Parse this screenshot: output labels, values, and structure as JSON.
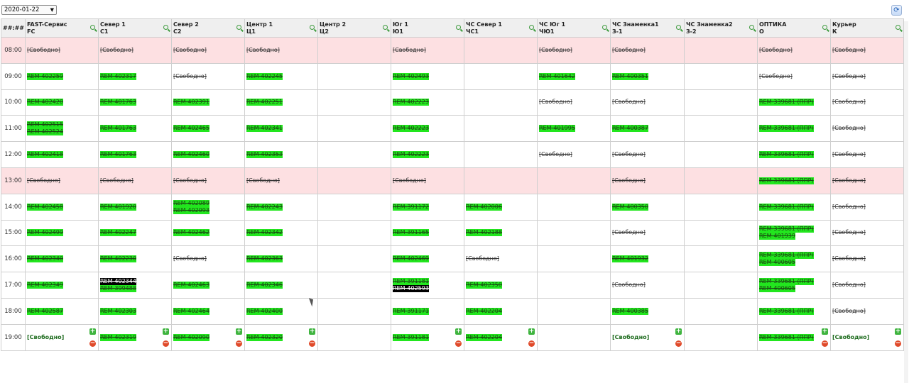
{
  "toolbar": {
    "date_value": "2020-01-22",
    "date_arrow": "▼",
    "refresh_icon": "refresh-icon"
  },
  "table": {
    "time_header": "##:##",
    "columns": [
      {
        "name": "FAST-Сервис",
        "code": "FC"
      },
      {
        "name": "Север 1",
        "code": "С1"
      },
      {
        "name": "Север 2",
        "code": "С2"
      },
      {
        "name": "Центр 1",
        "code": "Ц1"
      },
      {
        "name": "Центр 2",
        "code": "Ц2"
      },
      {
        "name": "Юг 1",
        "code": "Ю1"
      },
      {
        "name": "ЧС Север 1",
        "code": "ЧС1"
      },
      {
        "name": "ЧС Юг 1",
        "code": "ЧЮ1"
      },
      {
        "name": "ЧС Знаменка1",
        "code": "З-1"
      },
      {
        "name": "ЧС Знаменка2",
        "code": "З-2"
      },
      {
        "name": "ОПТИКА",
        "code": "О"
      },
      {
        "name": "Курьер",
        "code": "К"
      }
    ],
    "rows": [
      {
        "time": "08:00",
        "lunch": true,
        "cells": [
          [
            {
              "t": "[Свободно]",
              "s": "free"
            }
          ],
          [
            {
              "t": "[Свободно]",
              "s": "free"
            }
          ],
          [
            {
              "t": "[Свободно]",
              "s": "free"
            }
          ],
          [
            {
              "t": "[Свободно]",
              "s": "free"
            }
          ],
          [],
          [
            {
              "t": "[Свободно]",
              "s": "free"
            }
          ],
          [],
          [
            {
              "t": "[Свободно]",
              "s": "free"
            }
          ],
          [
            {
              "t": "[Свободно]",
              "s": "free"
            }
          ],
          [],
          [
            {
              "t": "[Свободно]",
              "s": "free"
            }
          ],
          [
            {
              "t": "[Свободно]",
              "s": "free"
            }
          ]
        ]
      },
      {
        "time": "09:00",
        "cells": [
          [
            {
              "t": "REM-402259",
              "s": "taken"
            }
          ],
          [
            {
              "t": "REM-402317",
              "s": "taken"
            }
          ],
          [
            {
              "t": "[Свободно]",
              "s": "free"
            }
          ],
          [
            {
              "t": "REM-402245",
              "s": "taken"
            }
          ],
          [],
          [
            {
              "t": "REM-402493",
              "s": "taken"
            }
          ],
          [],
          [
            {
              "t": "REM-401642",
              "s": "taken"
            }
          ],
          [
            {
              "t": "REM-400351",
              "s": "taken"
            }
          ],
          [],
          [
            {
              "t": "[Свободно]",
              "s": "free"
            }
          ],
          [
            {
              "t": "[Свободно]",
              "s": "free"
            }
          ]
        ]
      },
      {
        "time": "10:00",
        "cells": [
          [
            {
              "t": "REM-402420",
              "s": "taken"
            }
          ],
          [
            {
              "t": "REM-401763",
              "s": "taken"
            }
          ],
          [
            {
              "t": "REM-402391",
              "s": "taken"
            }
          ],
          [
            {
              "t": "REM-402251",
              "s": "taken"
            }
          ],
          [],
          [
            {
              "t": "REM-402223",
              "s": "taken"
            }
          ],
          [],
          [
            {
              "t": "[Свободно]",
              "s": "free"
            }
          ],
          [
            {
              "t": "[Свободно]",
              "s": "free"
            }
          ],
          [],
          [
            {
              "t": "REM-339681 (ППР)",
              "s": "taken"
            }
          ],
          [
            {
              "t": "[Свободно]",
              "s": "free"
            }
          ]
        ]
      },
      {
        "time": "11:00",
        "cells": [
          [
            {
              "t": "REM-402515",
              "s": "taken"
            },
            {
              "t": "REM-402524",
              "s": "taken"
            }
          ],
          [
            {
              "t": "REM-401763",
              "s": "taken"
            }
          ],
          [
            {
              "t": "REM-402465",
              "s": "taken"
            }
          ],
          [
            {
              "t": "REM-402341",
              "s": "taken"
            }
          ],
          [],
          [
            {
              "t": "REM-402223",
              "s": "taken"
            }
          ],
          [],
          [
            {
              "t": "REM-401995",
              "s": "taken"
            }
          ],
          [
            {
              "t": "REM-400387",
              "s": "taken"
            }
          ],
          [],
          [
            {
              "t": "REM-339681 (ППР)",
              "s": "taken"
            }
          ],
          [
            {
              "t": "[Свободно]",
              "s": "free"
            }
          ]
        ]
      },
      {
        "time": "12:00",
        "cells": [
          [
            {
              "t": "REM-402418",
              "s": "taken"
            }
          ],
          [
            {
              "t": "REM-401763",
              "s": "taken"
            }
          ],
          [
            {
              "t": "REM-402460",
              "s": "taken"
            }
          ],
          [
            {
              "t": "REM-402353",
              "s": "taken"
            }
          ],
          [],
          [
            {
              "t": "REM-402223",
              "s": "taken"
            }
          ],
          [],
          [
            {
              "t": "[Свободно]",
              "s": "free"
            }
          ],
          [
            {
              "t": "[Свободно]",
              "s": "free"
            }
          ],
          [],
          [
            {
              "t": "REM-339681 (ППР)",
              "s": "taken"
            }
          ],
          [
            {
              "t": "[Свободно]",
              "s": "free"
            }
          ]
        ]
      },
      {
        "time": "13:00",
        "lunch": true,
        "cells": [
          [
            {
              "t": "[Свободно]",
              "s": "free"
            }
          ],
          [
            {
              "t": "[Свободно]",
              "s": "free"
            }
          ],
          [
            {
              "t": "[Свободно]",
              "s": "free"
            }
          ],
          [
            {
              "t": "[Свободно]",
              "s": "free"
            }
          ],
          [],
          [
            {
              "t": "[Свободно]",
              "s": "free"
            }
          ],
          [],
          [],
          [
            {
              "t": "[Свободно]",
              "s": "free"
            }
          ],
          [],
          [
            {
              "t": "REM-339681 (ППР)",
              "s": "taken"
            }
          ],
          [
            {
              "t": "[Свободно]",
              "s": "free"
            }
          ]
        ]
      },
      {
        "time": "14:00",
        "cells": [
          [
            {
              "t": "REM-402458",
              "s": "taken"
            }
          ],
          [
            {
              "t": "REM-401920",
              "s": "taken"
            }
          ],
          [
            {
              "t": "REM-402089",
              "s": "taken"
            },
            {
              "t": "REM-402093",
              "s": "taken"
            }
          ],
          [
            {
              "t": "REM-402243",
              "s": "taken"
            }
          ],
          [],
          [
            {
              "t": "REM-391172",
              "s": "taken"
            }
          ],
          [
            {
              "t": "REM-402006",
              "s": "taken"
            }
          ],
          [],
          [
            {
              "t": "REM-400350",
              "s": "taken"
            }
          ],
          [],
          [
            {
              "t": "REM-339681 (ППР)",
              "s": "taken"
            }
          ],
          [
            {
              "t": "[Свободно]",
              "s": "free"
            }
          ]
        ]
      },
      {
        "time": "15:00",
        "cells": [
          [
            {
              "t": "REM-402499",
              "s": "taken"
            }
          ],
          [
            {
              "t": "REM-402247",
              "s": "taken"
            }
          ],
          [
            {
              "t": "REM-402462",
              "s": "taken"
            }
          ],
          [
            {
              "t": "REM-402342",
              "s": "taken"
            }
          ],
          [],
          [
            {
              "t": "REM-391165",
              "s": "taken"
            }
          ],
          [
            {
              "t": "REM-402188",
              "s": "taken"
            }
          ],
          [],
          [
            {
              "t": "[Свободно]",
              "s": "free"
            }
          ],
          [],
          [
            {
              "t": "REM-339681 (ППР)",
              "s": "taken"
            },
            {
              "t": "REM-401939",
              "s": "taken"
            }
          ],
          [
            {
              "t": "[Свободно]",
              "s": "free"
            }
          ]
        ]
      },
      {
        "time": "16:00",
        "cells": [
          [
            {
              "t": "REM-402340",
              "s": "taken"
            }
          ],
          [
            {
              "t": "REM-402230",
              "s": "taken"
            }
          ],
          [
            {
              "t": "[Свободно]",
              "s": "free"
            }
          ],
          [
            {
              "t": "REM-402363",
              "s": "taken"
            }
          ],
          [],
          [
            {
              "t": "REM-402469",
              "s": "taken"
            }
          ],
          [
            {
              "t": "[Свободно]",
              "s": "free"
            }
          ],
          [],
          [
            {
              "t": "REM-401932",
              "s": "taken"
            }
          ],
          [],
          [
            {
              "t": "REM-339681 (ППР)",
              "s": "taken"
            },
            {
              "t": "REM-400605",
              "s": "taken"
            }
          ],
          [
            {
              "t": "[Свободно]",
              "s": "free"
            }
          ]
        ]
      },
      {
        "time": "17:00",
        "cells": [
          [
            {
              "t": "REM-402349",
              "s": "taken"
            }
          ],
          [
            {
              "t": "REM-402344",
              "s": "sel"
            },
            {
              "t": "REM-399488",
              "s": "taken"
            }
          ],
          [
            {
              "t": "REM-402463",
              "s": "taken"
            }
          ],
          [
            {
              "t": "REM-402346",
              "s": "taken"
            }
          ],
          [],
          [
            {
              "t": "REM-391181",
              "s": "taken"
            },
            {
              "t": "REM-402593",
              "s": "sel"
            }
          ],
          [
            {
              "t": "REM-402350",
              "s": "taken"
            }
          ],
          [],
          [
            {
              "t": "[Свободно]",
              "s": "free"
            }
          ],
          [],
          [
            {
              "t": "REM-339681 (ППР)",
              "s": "taken"
            },
            {
              "t": "REM-400605",
              "s": "taken"
            }
          ],
          [
            {
              "t": "[Свободно]",
              "s": "free"
            }
          ]
        ]
      },
      {
        "time": "18:00",
        "cells": [
          [
            {
              "t": "REM-402587",
              "s": "taken"
            }
          ],
          [
            {
              "t": "REM-402303",
              "s": "taken"
            }
          ],
          [
            {
              "t": "REM-402464",
              "s": "taken"
            }
          ],
          [
            {
              "t": "REM-402400",
              "s": "taken"
            }
          ],
          [],
          [
            {
              "t": "REM-391171",
              "s": "taken"
            }
          ],
          [
            {
              "t": "REM-402204",
              "s": "taken"
            }
          ],
          [],
          [
            {
              "t": "REM-400385",
              "s": "taken"
            }
          ],
          [],
          [
            {
              "t": "REM-339681 (ППР)",
              "s": "taken"
            }
          ],
          [
            {
              "t": "[Свободно]",
              "s": "free"
            }
          ]
        ]
      },
      {
        "time": "19:00",
        "cells": [
          [
            {
              "t": "[Свободно]",
              "s": "open"
            }
          ],
          [
            {
              "t": "REM-402319",
              "s": "taken"
            }
          ],
          [
            {
              "t": "REM-402090",
              "s": "taken"
            }
          ],
          [
            {
              "t": "REM-402320",
              "s": "taken"
            }
          ],
          [],
          [
            {
              "t": "REM-391181",
              "s": "taken"
            }
          ],
          [
            {
              "t": "REM-402204",
              "s": "taken"
            }
          ],
          [],
          [
            {
              "t": "[Свободно]",
              "s": "open"
            }
          ],
          [],
          [
            {
              "t": "REM-339681 (ППР)",
              "s": "taken"
            }
          ],
          [
            {
              "t": "[Свободно]",
              "s": "open"
            }
          ]
        ],
        "controls": [
          true,
          true,
          true,
          true,
          false,
          true,
          true,
          false,
          true,
          false,
          true,
          true
        ]
      }
    ]
  },
  "icons": {
    "plus": "+",
    "minus": "−",
    "zoom": "zoom-icon"
  },
  "colors": {
    "taken": "#22e61e",
    "lunch_row": "#fde0e2",
    "selected": "#000000",
    "open_text": "#1d6b1d"
  }
}
